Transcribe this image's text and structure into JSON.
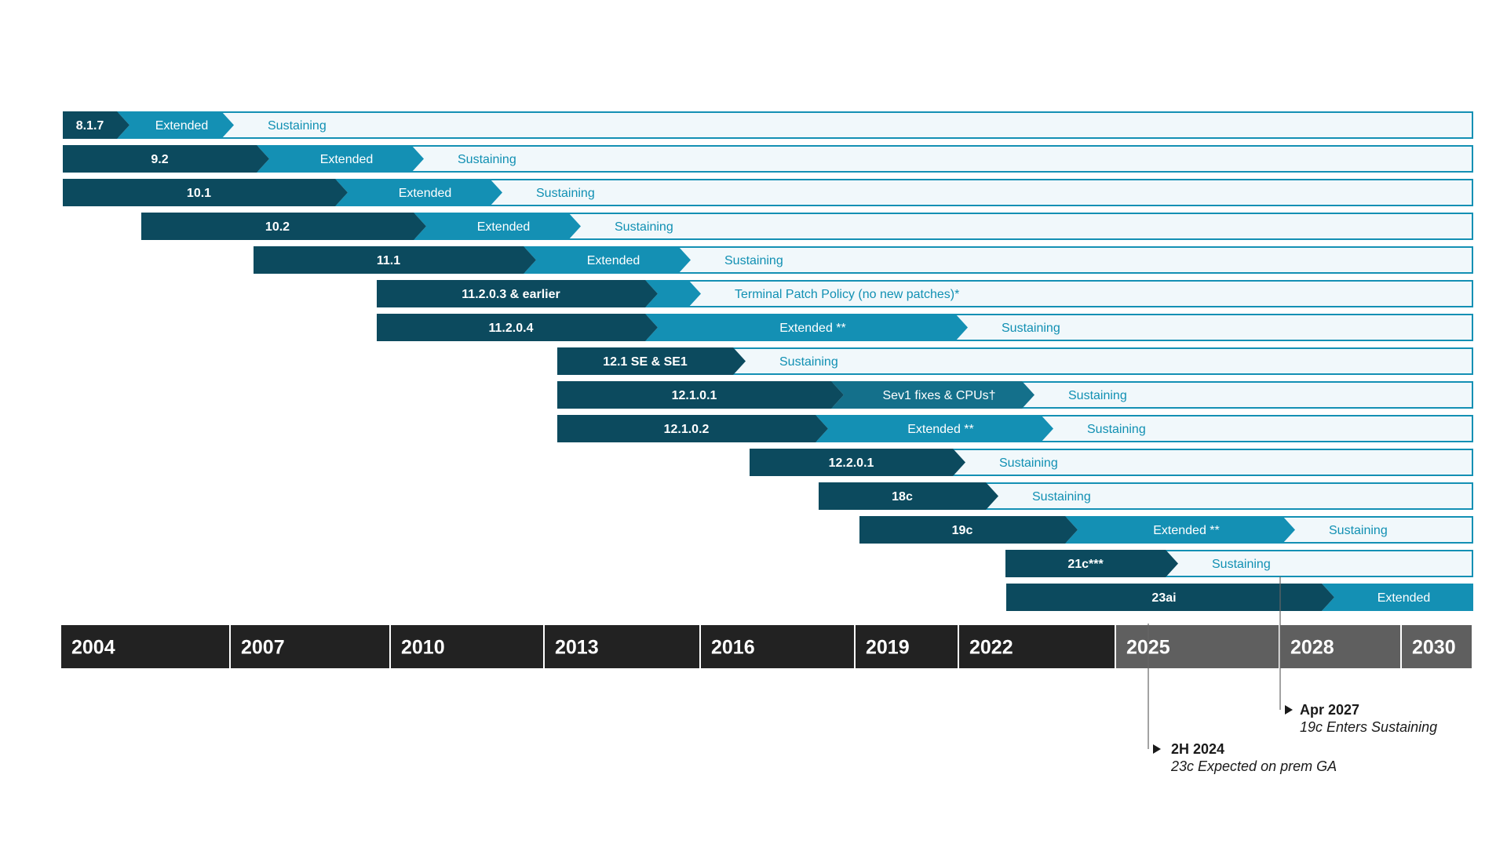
{
  "chart_data": {
    "type": "timeline",
    "title": "",
    "colors": {
      "premier": "#0c4a5e",
      "extended": "#1490b4",
      "sev1": "#14708b",
      "sustaining_fill": "#f1f8fb",
      "sustaining_border": "#1490b4",
      "axis_dark": "#222222",
      "axis_gray": "#5f5f5f"
    },
    "years": [
      "2004",
      "2007",
      "2010",
      "2013",
      "2016",
      "2019",
      "2022",
      "2025",
      "2028",
      "2030"
    ],
    "releases": [
      {
        "name": "8.1.7",
        "segments": [
          {
            "type": "premier",
            "label": "8.1.7"
          },
          {
            "type": "extended",
            "label": "Extended"
          },
          {
            "type": "sustaining",
            "label": "Sustaining"
          }
        ]
      },
      {
        "name": "9.2",
        "segments": [
          {
            "type": "premier",
            "label": "9.2"
          },
          {
            "type": "extended",
            "label": "Extended"
          },
          {
            "type": "sustaining",
            "label": "Sustaining"
          }
        ]
      },
      {
        "name": "10.1",
        "segments": [
          {
            "type": "premier",
            "label": "10.1"
          },
          {
            "type": "extended",
            "label": "Extended"
          },
          {
            "type": "sustaining",
            "label": "Sustaining"
          }
        ]
      },
      {
        "name": "10.2",
        "segments": [
          {
            "type": "premier",
            "label": "10.2"
          },
          {
            "type": "extended",
            "label": "Extended"
          },
          {
            "type": "sustaining",
            "label": "Sustaining"
          }
        ]
      },
      {
        "name": "11.1",
        "segments": [
          {
            "type": "premier",
            "label": "11.1"
          },
          {
            "type": "extended",
            "label": "Extended"
          },
          {
            "type": "sustaining",
            "label": "Sustaining"
          }
        ]
      },
      {
        "name": "11.2.0.3 & earlier",
        "segments": [
          {
            "type": "premier",
            "label": "11.2.0.3 & earlier"
          },
          {
            "type": "extended",
            "label": ""
          },
          {
            "type": "sustaining",
            "label": "Terminal Patch Policy (no new patches)*"
          }
        ]
      },
      {
        "name": "11.2.0.4",
        "segments": [
          {
            "type": "premier",
            "label": "11.2.0.4"
          },
          {
            "type": "extended",
            "label": "Extended **"
          },
          {
            "type": "sustaining",
            "label": "Sustaining"
          }
        ]
      },
      {
        "name": "12.1 SE & SE1",
        "segments": [
          {
            "type": "premier",
            "label": "12.1 SE & SE1"
          },
          {
            "type": "sustaining",
            "label": "Sustaining"
          }
        ]
      },
      {
        "name": "12.1.0.1",
        "segments": [
          {
            "type": "premier",
            "label": "12.1.0.1"
          },
          {
            "type": "sev1",
            "label": "Sev1 fixes & CPUs†"
          },
          {
            "type": "sustaining",
            "label": "Sustaining"
          }
        ]
      },
      {
        "name": "12.1.0.2",
        "segments": [
          {
            "type": "premier",
            "label": "12.1.0.2"
          },
          {
            "type": "extended",
            "label": "Extended **"
          },
          {
            "type": "sustaining",
            "label": "Sustaining"
          }
        ]
      },
      {
        "name": "12.2.0.1",
        "segments": [
          {
            "type": "premier",
            "label": "12.2.0.1"
          },
          {
            "type": "sustaining",
            "label": "Sustaining"
          }
        ]
      },
      {
        "name": "18c",
        "segments": [
          {
            "type": "premier",
            "label": "18c"
          },
          {
            "type": "sustaining",
            "label": "Sustaining"
          }
        ]
      },
      {
        "name": "19c",
        "segments": [
          {
            "type": "premier",
            "label": "19c"
          },
          {
            "type": "extended",
            "label": "Extended **"
          },
          {
            "type": "sustaining",
            "label": "Sustaining"
          }
        ]
      },
      {
        "name": "21c***",
        "segments": [
          {
            "type": "premier",
            "label": "21c***"
          },
          {
            "type": "sustaining",
            "label": "Sustaining"
          }
        ]
      },
      {
        "name": "23ai",
        "segments": [
          {
            "type": "premier",
            "label": "23ai"
          },
          {
            "type": "extended",
            "label": "Extended"
          }
        ]
      }
    ],
    "annotations": [
      {
        "date": "Apr 2027",
        "text": "19c Enters Sustaining"
      },
      {
        "date": "2H 2024",
        "text": "23c Expected on prem GA"
      }
    ]
  }
}
